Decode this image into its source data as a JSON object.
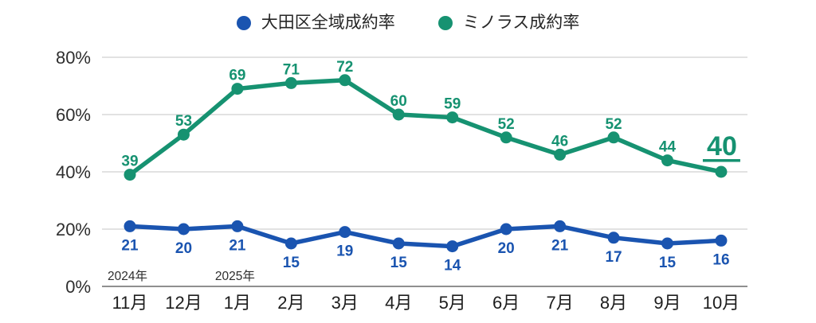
{
  "legend": {
    "items": [
      {
        "label": "大田区全域成約率",
        "color": "#1a54b0"
      },
      {
        "label": "ミノラス成約率",
        "color": "#169271"
      }
    ]
  },
  "chart_data": {
    "type": "line",
    "title": "",
    "categories": [
      "11月",
      "12月",
      "1月",
      "2月",
      "3月",
      "4月",
      "5月",
      "6月",
      "7月",
      "8月",
      "9月",
      "10月"
    ],
    "year_annotations": [
      {
        "label": "2024年",
        "category_index": 0
      },
      {
        "label": "2025年",
        "category_index": 2
      }
    ],
    "series": [
      {
        "name": "ミノラス成約率",
        "color": "#169271",
        "values": [
          39,
          53,
          69,
          71,
          72,
          60,
          59,
          52,
          46,
          52,
          44,
          40
        ],
        "value_label_position": "above"
      },
      {
        "name": "大田区全域成約率",
        "color": "#1a54b0",
        "values": [
          21,
          20,
          21,
          15,
          19,
          15,
          14,
          20,
          21,
          17,
          15,
          16
        ],
        "value_label_position": "below"
      }
    ],
    "highlight": {
      "series": "ミノラス成約率",
      "category_index": 11,
      "value": 40,
      "style": "large-bold-underlined"
    },
    "y_ticks": [
      {
        "value": 0,
        "label": "0%"
      },
      {
        "value": 20,
        "label": "20%"
      },
      {
        "value": 40,
        "label": "40%"
      },
      {
        "value": 60,
        "label": "60%"
      },
      {
        "value": 80,
        "label": "80%"
      }
    ],
    "ylim": [
      0,
      80
    ],
    "grid": "horizontal",
    "legend_position": "top-center"
  }
}
